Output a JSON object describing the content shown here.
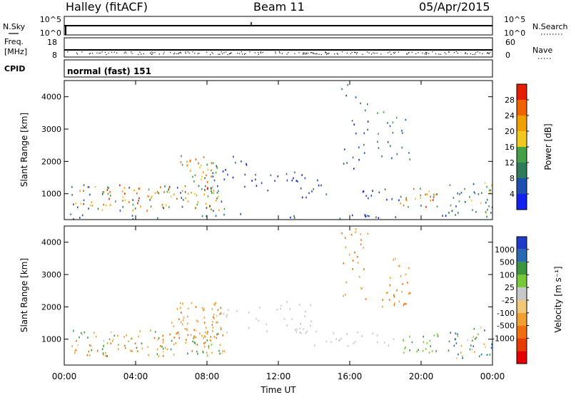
{
  "header": {
    "station": "Halley (fitACF)",
    "beam": "Beam 11",
    "date": "05/Apr/2015"
  },
  "strip_noise": {
    "left_label": "N.Sky",
    "left_ticks": [
      "10^5",
      "10^0"
    ],
    "right_label": "N.Search",
    "right_ticks": [
      "10^5",
      "10^0"
    ]
  },
  "strip_freq": {
    "left_label_1": "Freq.",
    "left_label_2": "[MHz]",
    "left_ticks": [
      "18",
      "8"
    ],
    "right_label": "Nave",
    "right_ticks": [
      "60",
      "0"
    ]
  },
  "strip_cpid": {
    "label": "CPID",
    "value": "normal (fast) 151"
  },
  "colors": {
    "power_scale": [
      "#1420f0",
      "#1e50b4",
      "#2f7a58",
      "#46a046",
      "#f0c81e",
      "#f0a000",
      "#f06400",
      "#e61e00"
    ],
    "velocity_scale": [
      "#1e3cc8",
      "#2a6ab0",
      "#3c9640",
      "#78c83c",
      "#c8c8c8",
      "#f0c878",
      "#f0a030",
      "#f07010",
      "#e63c00",
      "#e60000"
    ]
  },
  "chart_data": [
    {
      "type": "heatmap",
      "name": "power",
      "ylabel": "Slant Range [km]",
      "yticks": [
        "4000",
        "3000",
        "2000",
        "1000"
      ],
      "ylim": [
        200,
        4500
      ],
      "xlim_hours": [
        0,
        24
      ],
      "colorbar_label": "Power [dB]",
      "colorbar_ticks": [
        "28",
        "24",
        "20",
        "16",
        "12",
        "8",
        "4"
      ],
      "colorbar_range": [
        0,
        32
      ],
      "scatter_regions": [
        {
          "t": [
            0.4,
            9.0
          ],
          "r": [
            500,
            1300
          ],
          "v": [
            4,
            30
          ],
          "density": 0.85
        },
        {
          "t": [
            6.5,
            8.6
          ],
          "r": [
            1000,
            2200
          ],
          "v": [
            8,
            30
          ],
          "density": 0.7
        },
        {
          "t": [
            8.0,
            10.5
          ],
          "r": [
            1400,
            2200
          ],
          "v": [
            2,
            10
          ],
          "density": 0.35
        },
        {
          "t": [
            9.0,
            14.5
          ],
          "r": [
            1100,
            1700
          ],
          "v": [
            2,
            10
          ],
          "density": 0.3
        },
        {
          "t": [
            13.0,
            19.0
          ],
          "r": [
            800,
            1200
          ],
          "v": [
            2,
            10
          ],
          "density": 0.35
        },
        {
          "t": [
            15.5,
            17.0
          ],
          "r": [
            1800,
            4500
          ],
          "v": [
            2,
            12
          ],
          "density": 0.25
        },
        {
          "t": [
            17.5,
            19.5
          ],
          "r": [
            2000,
            3600
          ],
          "v": [
            4,
            16
          ],
          "density": 0.3
        },
        {
          "t": [
            18.8,
            21.0
          ],
          "r": [
            600,
            1200
          ],
          "v": [
            10,
            32
          ],
          "density": 0.85
        },
        {
          "t": [
            21.5,
            24.0
          ],
          "r": [
            400,
            1400
          ],
          "v": [
            4,
            20
          ],
          "density": 0.7
        },
        {
          "t": [
            0.0,
            24.0
          ],
          "r": [
            200,
            400
          ],
          "v": [
            2,
            12
          ],
          "density": 0.3
        }
      ]
    },
    {
      "type": "heatmap",
      "name": "velocity",
      "ylabel": "Slant Range [km]",
      "yticks": [
        "4000",
        "3000",
        "2000",
        "1000"
      ],
      "ylim": [
        200,
        4500
      ],
      "xlim_hours": [
        0,
        24
      ],
      "xticks": [
        "00:00",
        "04:00",
        "08:00",
        "12:00",
        "16:00",
        "20:00",
        "00:00"
      ],
      "xlabel": "Time UT",
      "colorbar_label": "Velocity [m s⁻¹]",
      "colorbar_ticks": [
        "1000",
        "500",
        "100",
        "25",
        "-25",
        "-100",
        "-500",
        "-1000"
      ],
      "scatter_regions": [
        {
          "t": [
            0.4,
            9.0
          ],
          "r": [
            500,
            1300
          ],
          "v": [
            -800,
            400
          ],
          "density": 0.85
        },
        {
          "t": [
            6.0,
            8.8
          ],
          "r": [
            900,
            2200
          ],
          "v": [
            -600,
            -150
          ],
          "density": 0.8
        },
        {
          "t": [
            8.5,
            14.0
          ],
          "r": [
            1200,
            2200
          ],
          "v": [
            -20,
            20
          ],
          "density": 0.3
        },
        {
          "t": [
            13.0,
            19.0
          ],
          "r": [
            800,
            1300
          ],
          "v": [
            -20,
            20
          ],
          "density": 0.35
        },
        {
          "t": [
            15.5,
            17.0
          ],
          "r": [
            1800,
            4500
          ],
          "v": [
            -700,
            -200
          ],
          "density": 0.3
        },
        {
          "t": [
            17.5,
            19.5
          ],
          "r": [
            2000,
            3600
          ],
          "v": [
            -700,
            -150
          ],
          "density": 0.4
        },
        {
          "t": [
            18.8,
            21.0
          ],
          "r": [
            600,
            1200
          ],
          "v": [
            40,
            120
          ],
          "density": 0.8
        },
        {
          "t": [
            21.5,
            24.0
          ],
          "r": [
            400,
            1400
          ],
          "v": [
            -300,
            800
          ],
          "density": 0.7
        }
      ]
    }
  ]
}
